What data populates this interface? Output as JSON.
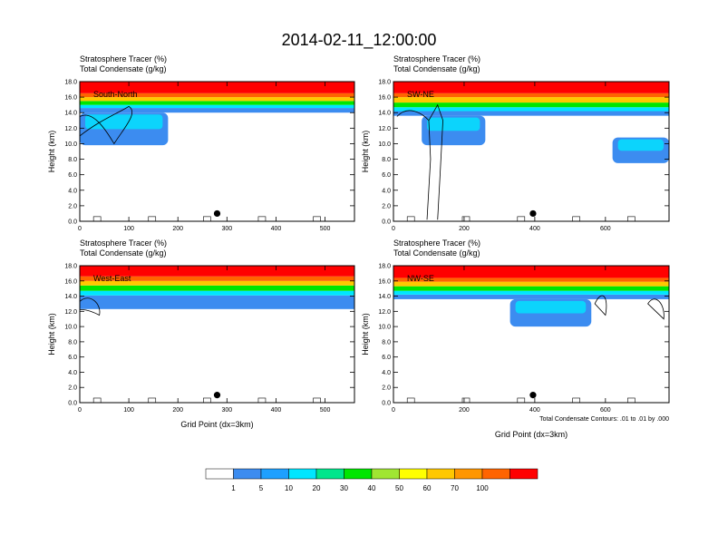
{
  "figure_title": "2014-02-11_12:00:00",
  "x_axis_label": "Grid Point (dx=3km)",
  "contour_note": "Total Condensate Contours: .01 to .01 by .000",
  "colorbar": {
    "levels": [
      "1",
      "5",
      "10",
      "20",
      "30",
      "40",
      "50",
      "60",
      "70",
      "100"
    ],
    "colors": [
      "#ffffff",
      "#3c8cf0",
      "#1ea0ff",
      "#00e6ff",
      "#00e68c",
      "#00e600",
      "#a0e632",
      "#ffff00",
      "#ffc800",
      "#ff9600",
      "#ff6400",
      "#ff0000"
    ]
  },
  "chart_data": [
    {
      "type": "heatmap",
      "panel_label": "South-North",
      "title_line1": "Stratosphere Tracer   (%)",
      "title_line2": "Total Condensate   (g/kg)",
      "ylabel": "Height (km)",
      "xlabel": "",
      "xlim": [
        0,
        560
      ],
      "ylim": [
        0,
        18
      ],
      "xticks": [
        0,
        100,
        200,
        300,
        400,
        500
      ],
      "yticks": [
        "0.0",
        "2.0",
        "4.0",
        "6.0",
        "8.0",
        "10.0",
        "12.0",
        "14.0",
        "16.0",
        "18.0"
      ],
      "marker_x": 280,
      "tracer_bands_km": {
        "100": [
          16.5,
          18
        ],
        "70": [
          16.0,
          16.5
        ],
        "50": [
          15.5,
          16.0
        ],
        "20": [
          15.0,
          15.5
        ],
        "10": [
          14.6,
          15.0
        ],
        "5": [
          14.0,
          14.6
        ]
      },
      "tracer_extension": [
        {
          "x_start": 0,
          "x_end": 180,
          "bottom_km": 9.8,
          "top_km": 14.0
        }
      ],
      "condensate_contours": "cloud outline x 0-130 km 9-14, surface bits near 0-2 km"
    },
    {
      "type": "heatmap",
      "panel_label": "SW-NE",
      "title_line1": "Stratosphere Tracer   (%)",
      "title_line2": "Total Condensate   (g/kg)",
      "ylabel": "Height (km)",
      "xlabel": "",
      "xlim": [
        0,
        780
      ],
      "ylim": [
        0,
        18
      ],
      "xticks": [
        0,
        200,
        400,
        600
      ],
      "yticks": [
        "0.0",
        "2.0",
        "4.0",
        "6.0",
        "8.0",
        "10.0",
        "12.0",
        "14.0",
        "16.0",
        "18.0"
      ],
      "marker_x": 395,
      "tracer_bands_km": {
        "100": [
          16.5,
          18
        ],
        "70": [
          16.0,
          16.5
        ],
        "50": [
          15.3,
          16.0
        ],
        "20": [
          14.7,
          15.3
        ],
        "10": [
          14.2,
          14.7
        ],
        "5": [
          13.6,
          14.2
        ]
      },
      "tracer_extension": [
        {
          "x_start": 80,
          "x_end": 260,
          "bottom_km": 9.8,
          "top_km": 13.6
        },
        {
          "x_start": 620,
          "x_end": 780,
          "bottom_km": 7.5,
          "top_km": 10.8
        }
      ],
      "condensate_contours": "deep convective column near x=120 from surface to 15 km"
    },
    {
      "type": "heatmap",
      "panel_label": "West-East",
      "title_line1": "Stratosphere Tracer   (%)",
      "title_line2": "Total Condensate   (g/kg)",
      "ylabel": "Height (km)",
      "xlabel": "Grid Point (dx=3km)",
      "xlim": [
        0,
        560
      ],
      "ylim": [
        0,
        18
      ],
      "xticks": [
        0,
        100,
        200,
        300,
        400,
        500
      ],
      "yticks": [
        "0.0",
        "2.0",
        "4.0",
        "6.0",
        "8.0",
        "10.0",
        "12.0",
        "14.0",
        "16.0",
        "18.0"
      ],
      "marker_x": 280,
      "tracer_bands_km": {
        "100": [
          16.6,
          18
        ],
        "70": [
          16.0,
          16.6
        ],
        "50": [
          15.4,
          16.0
        ],
        "20": [
          14.7,
          15.4
        ],
        "10": [
          14.1,
          14.7
        ],
        "5": [
          12.3,
          14.1
        ]
      },
      "tracer_extension": [],
      "condensate_contours": "cloud outline x 0-45 km 11-14, surface bits near 0-1 km"
    },
    {
      "type": "heatmap",
      "panel_label": "NW-SE",
      "title_line1": "Stratosphere Tracer   (%)",
      "title_line2": "Total Condensate   (g/kg)",
      "ylabel": "Height (km)",
      "xlabel": "Grid Point (dx=3km)",
      "xlim": [
        0,
        780
      ],
      "ylim": [
        0,
        18
      ],
      "xticks": [
        0,
        200,
        400,
        600
      ],
      "yticks": [
        "0.0",
        "2.0",
        "4.0",
        "6.0",
        "8.0",
        "10.0",
        "12.0",
        "14.0",
        "16.0",
        "18.0"
      ],
      "marker_x": 395,
      "tracer_bands_km": {
        "100": [
          16.4,
          18
        ],
        "70": [
          15.9,
          16.4
        ],
        "50": [
          15.3,
          15.9
        ],
        "20": [
          14.7,
          15.3
        ],
        "10": [
          14.2,
          14.7
        ],
        "5": [
          13.6,
          14.2
        ]
      },
      "tracer_extension": [
        {
          "x_start": 330,
          "x_end": 560,
          "bottom_km": 10.0,
          "top_km": 13.6
        }
      ],
      "condensate_contours": "small cloud outlines near x=560-780 km 11-16, surface bits near 0-1 km"
    }
  ]
}
